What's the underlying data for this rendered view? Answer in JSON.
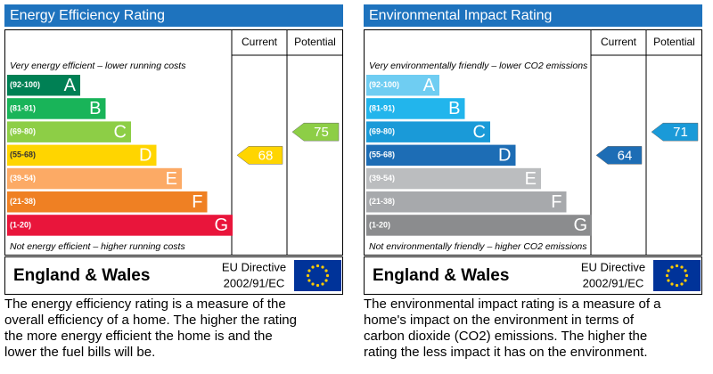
{
  "panels": [
    {
      "title": "Energy Efficiency Rating",
      "columns": [
        "Current",
        "Potential"
      ],
      "top_note": "Very energy efficient – lower running costs",
      "bottom_note": "Not energy efficient – higher running costs",
      "bands": [
        {
          "range": "(92-100)",
          "letter": "A",
          "color": "#008054"
        },
        {
          "range": "(81-91)",
          "letter": "B",
          "color": "#19b459"
        },
        {
          "range": "(69-80)",
          "letter": "C",
          "color": "#8dce46"
        },
        {
          "range": "(55-68)",
          "letter": "D",
          "color": "#ffd500"
        },
        {
          "range": "(39-54)",
          "letter": "E",
          "color": "#fcaa65"
        },
        {
          "range": "(21-38)",
          "letter": "F",
          "color": "#ef8023"
        },
        {
          "range": "(1-20)",
          "letter": "G",
          "color": "#e9153b"
        }
      ],
      "current": 68,
      "potential": 75,
      "region": "England & Wales",
      "directive": [
        "EU Directive",
        "2002/91/EC"
      ],
      "description": [
        "The energy efficiency rating is a measure of the",
        "overall efficiency of a home.  The higher the rating",
        "the more energy efficient the home is and the",
        "lower the fuel bills will be."
      ]
    },
    {
      "title": "Environmental Impact Rating",
      "columns": [
        "Current",
        "Potential"
      ],
      "top_note": "Very environmentally friendly – lower CO2 emissions",
      "bottom_note": "Not environmentally friendly – higher CO2 emissions",
      "bands": [
        {
          "range": "(92-100)",
          "letter": "A",
          "color": "#6fcdf2"
        },
        {
          "range": "(81-91)",
          "letter": "B",
          "color": "#22b5ec"
        },
        {
          "range": "(69-80)",
          "letter": "C",
          "color": "#1a9ad8"
        },
        {
          "range": "(55-68)",
          "letter": "D",
          "color": "#1d6db5"
        },
        {
          "range": "(39-54)",
          "letter": "E",
          "color": "#bbbdbf"
        },
        {
          "range": "(21-38)",
          "letter": "F",
          "color": "#a7a9ac"
        },
        {
          "range": "(1-20)",
          "letter": "G",
          "color": "#8b8c8e"
        }
      ],
      "current": 64,
      "potential": 71,
      "region": "England & Wales",
      "directive": [
        "EU Directive",
        "2002/91/EC"
      ],
      "description": [
        "The environmental impact rating is a measure of a",
        "home's impact on the environment in terms of",
        "carbon dioxide (CO2) emissions.  The higher the",
        "rating the less impact it has on the environment."
      ]
    }
  ]
}
